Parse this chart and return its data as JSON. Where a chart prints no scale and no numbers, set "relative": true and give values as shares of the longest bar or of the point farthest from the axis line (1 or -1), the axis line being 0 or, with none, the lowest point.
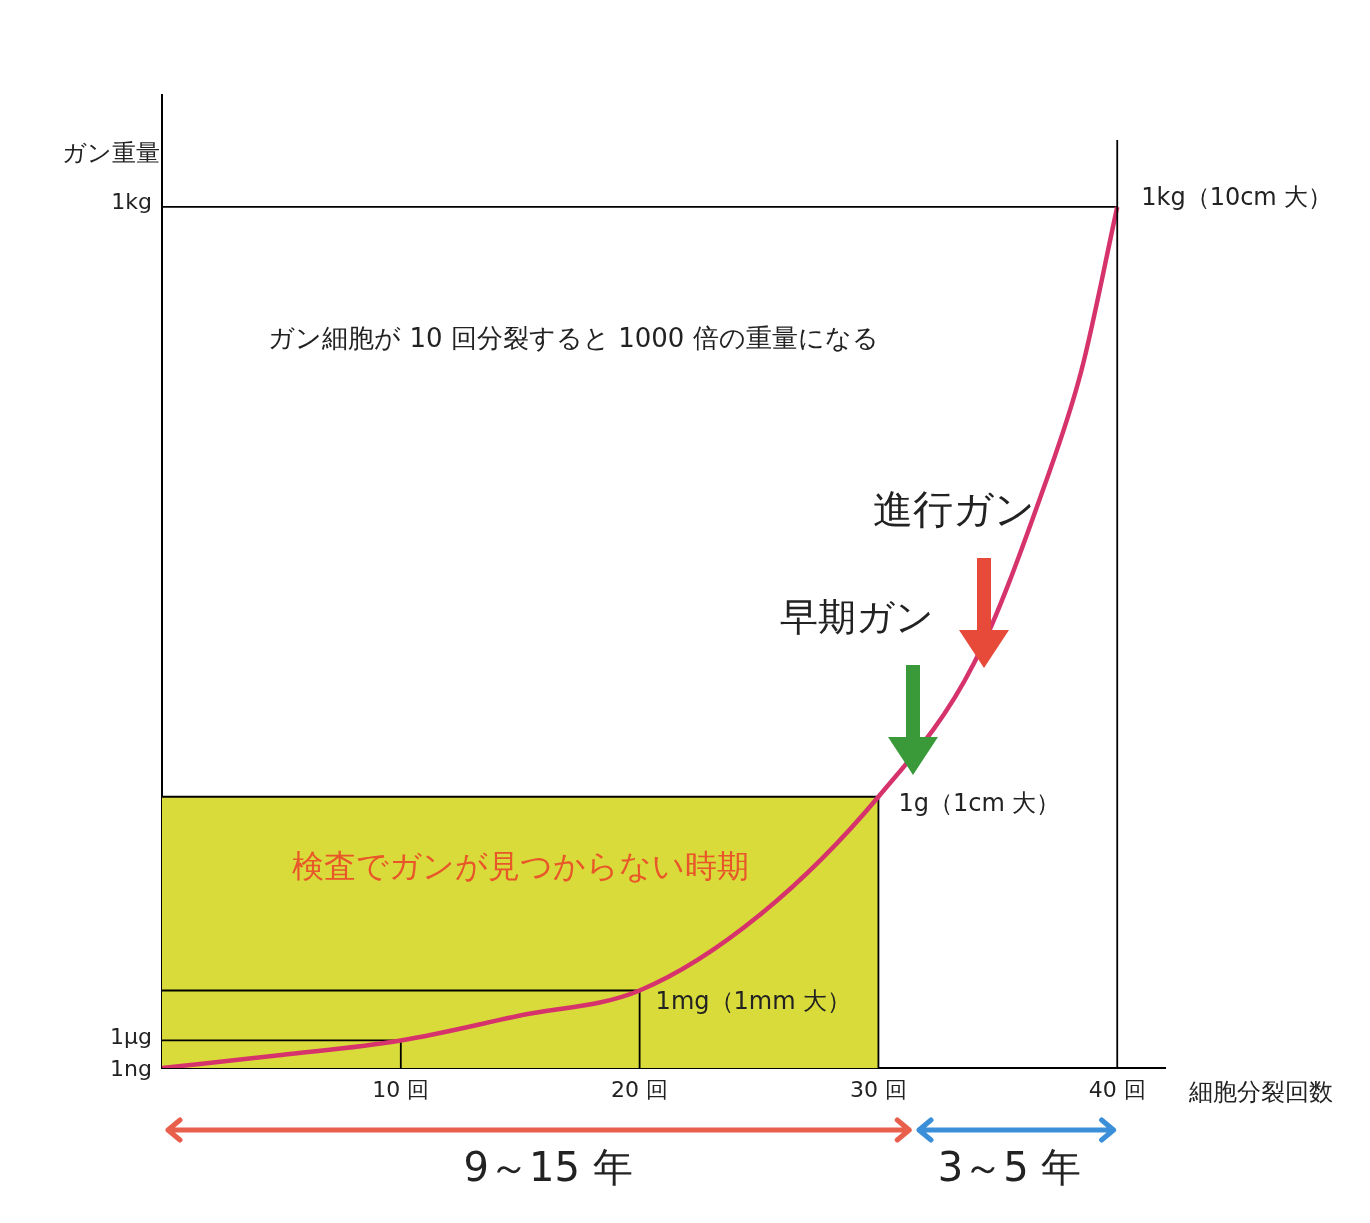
{
  "chart_data": {
    "type": "line",
    "xlabel": "細胞分裂回数",
    "ylabel": "ガン重量",
    "relative": true,
    "xlim": [
      0,
      42
    ],
    "xticks": [
      {
        "value": 10,
        "label": "10 回"
      },
      {
        "value": 20,
        "label": "20 回"
      },
      {
        "value": 30,
        "label": "30 回"
      },
      {
        "value": 40,
        "label": "40 回"
      }
    ],
    "grid": false,
    "legend": false,
    "marker": "none",
    "series": [
      {
        "type": "area",
        "color": "#d8db3a",
        "x": [
          0,
          30
        ],
        "values": [
          0.315,
          0.315
        ]
      },
      {
        "color": "#000000",
        "x": [
          0,
          10,
          10
        ],
        "values": [
          0.032,
          0.032,
          0
        ]
      },
      {
        "color": "#000000",
        "x": [
          0,
          20,
          20
        ],
        "values": [
          0.09,
          0.09,
          0
        ]
      },
      {
        "color": "#000000",
        "x": [
          30,
          30
        ],
        "values": [
          0,
          0.315
        ]
      },
      {
        "color": "#000000",
        "x": [
          0,
          40
        ],
        "values": [
          1,
          1
        ]
      },
      {
        "color": "#d6336c",
        "x": [
          0,
          5,
          10,
          15,
          20,
          25,
          30,
          34,
          37,
          38.5,
          40
        ],
        "values": [
          0,
          0.015,
          0.032,
          0.061,
          0.09,
          0.177,
          0.315,
          0.47,
          0.68,
          0.81,
          1
        ]
      }
    ],
    "ref_lines": [
      {
        "axis": "x",
        "value": 40,
        "color": "#000000"
      }
    ],
    "annotations": [
      "ガン細胞が 10 回分裂すると 1000 倍の重量になる",
      "検査でガンが見つからない時期",
      {
        "text": "1kg（10cm 大）",
        "x": 40,
        "y": 1
      },
      {
        "text": "1g（1cm 大）",
        "x": 30,
        "y": 0.315
      },
      {
        "text": "1mg（1mm 大）",
        "x": 20,
        "y": 0.09
      },
      "早期ガン",
      "進行ガン",
      "9～15 年",
      "3～5 年",
      {
        "text": "1ng",
        "x": 0,
        "y": 0
      },
      {
        "text": "1μg",
        "x": 0,
        "y": 0.032
      },
      {
        "text": "1kg",
        "x": 0,
        "y": 1
      }
    ]
  }
}
